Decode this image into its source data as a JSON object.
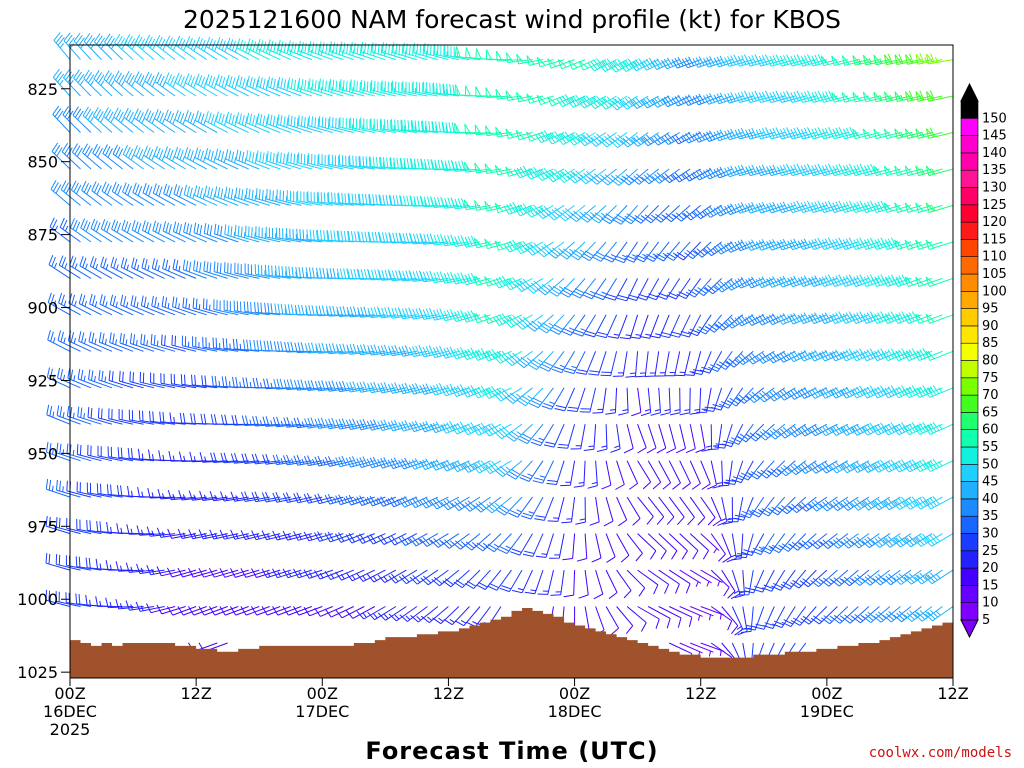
{
  "chart_data": {
    "type": "wind-barb-time-height",
    "title": "2025121600 NAM forecast wind profile (kt) for KBOS",
    "xlabel": "Forecast Time (UTC)",
    "ylabel": "",
    "units": "kt",
    "y_axis": {
      "label_suffix": "",
      "range_hpa": [
        810,
        1027
      ],
      "ticks": [
        "825",
        "850",
        "875",
        "900",
        "925",
        "950",
        "975",
        "1000",
        "1025"
      ],
      "tick_values": [
        825,
        850,
        875,
        900,
        925,
        950,
        975,
        1000,
        1025
      ]
    },
    "x_axis": {
      "range_hours": [
        0,
        84
      ],
      "ticks": [
        {
          "hour": 0,
          "lines": [
            "00Z",
            "16DEC",
            "2025"
          ]
        },
        {
          "hour": 12,
          "lines": [
            "12Z"
          ]
        },
        {
          "hour": 24,
          "lines": [
            "00Z",
            "17DEC"
          ]
        },
        {
          "hour": 36,
          "lines": [
            "12Z"
          ]
        },
        {
          "hour": 48,
          "lines": [
            "00Z",
            "18DEC"
          ]
        },
        {
          "hour": 60,
          "lines": [
            "12Z"
          ]
        },
        {
          "hour": 72,
          "lines": [
            "00Z",
            "19DEC"
          ]
        },
        {
          "hour": 84,
          "lines": [
            "12Z"
          ]
        }
      ]
    },
    "colorbar": {
      "levels": [
        "5",
        "10",
        "15",
        "20",
        "25",
        "30",
        "35",
        "40",
        "45",
        "50",
        "55",
        "60",
        "65",
        "70",
        "75",
        "80",
        "85",
        "90",
        "95",
        "100",
        "105",
        "110",
        "115",
        "120",
        "125",
        "130",
        "135",
        "140",
        "145",
        "150"
      ],
      "colors": [
        "#7f00ff",
        "#6600ff",
        "#4400ff",
        "#2222ff",
        "#1a3cff",
        "#1866ff",
        "#1b8bff",
        "#1fb0ff",
        "#1fd0ff",
        "#12f0e0",
        "#12ffb0",
        "#20ff70",
        "#40ff20",
        "#7aff00",
        "#bfff00",
        "#f5ff00",
        "#ffe600",
        "#ffcc00",
        "#ffaa00",
        "#ff8c00",
        "#ff6a00",
        "#ff4500",
        "#ff1a1a",
        "#ff0033",
        "#ff0066",
        "#ff1493",
        "#ff00aa",
        "#ff00cc",
        "#ff00ff",
        "#000000"
      ]
    },
    "terrain": {
      "color": "#a0522d",
      "pressure_hpa": [
        [
          0,
          1014
        ],
        [
          1,
          1015
        ],
        [
          2,
          1016
        ],
        [
          3,
          1015
        ],
        [
          4,
          1016
        ],
        [
          5,
          1015
        ],
        [
          6,
          1015
        ],
        [
          7,
          1015
        ],
        [
          8,
          1015
        ],
        [
          9,
          1015
        ],
        [
          10,
          1016
        ],
        [
          11,
          1016
        ],
        [
          12,
          1017
        ],
        [
          13,
          1017
        ],
        [
          14,
          1018
        ],
        [
          15,
          1018
        ],
        [
          16,
          1017
        ],
        [
          17,
          1017
        ],
        [
          18,
          1016
        ],
        [
          19,
          1016
        ],
        [
          20,
          1016
        ],
        [
          21,
          1016
        ],
        [
          22,
          1016
        ],
        [
          23,
          1016
        ],
        [
          24,
          1016
        ],
        [
          25,
          1016
        ],
        [
          26,
          1016
        ],
        [
          27,
          1015
        ],
        [
          28,
          1015
        ],
        [
          29,
          1014
        ],
        [
          30,
          1013
        ],
        [
          31,
          1013
        ],
        [
          32,
          1013
        ],
        [
          33,
          1012
        ],
        [
          34,
          1012
        ],
        [
          35,
          1011
        ],
        [
          36,
          1011
        ],
        [
          37,
          1010
        ],
        [
          38,
          1009
        ],
        [
          39,
          1008
        ],
        [
          40,
          1007
        ],
        [
          41,
          1006
        ],
        [
          42,
          1004
        ],
        [
          43,
          1003
        ],
        [
          44,
          1004
        ],
        [
          45,
          1005
        ],
        [
          46,
          1006
        ],
        [
          47,
          1008
        ],
        [
          48,
          1009
        ],
        [
          49,
          1010
        ],
        [
          50,
          1011
        ],
        [
          51,
          1012
        ],
        [
          52,
          1013
        ],
        [
          53,
          1014
        ],
        [
          54,
          1015
        ],
        [
          55,
          1016
        ],
        [
          56,
          1017
        ],
        [
          57,
          1018
        ],
        [
          58,
          1019
        ],
        [
          59,
          1019
        ],
        [
          60,
          1020
        ],
        [
          61,
          1020
        ],
        [
          62,
          1020
        ],
        [
          63,
          1020
        ],
        [
          64,
          1020
        ],
        [
          65,
          1019
        ],
        [
          66,
          1019
        ],
        [
          67,
          1019
        ],
        [
          68,
          1018
        ],
        [
          69,
          1018
        ],
        [
          70,
          1018
        ],
        [
          71,
          1017
        ],
        [
          72,
          1017
        ],
        [
          73,
          1016
        ],
        [
          74,
          1016
        ],
        [
          75,
          1015
        ],
        [
          76,
          1015
        ],
        [
          77,
          1014
        ],
        [
          78,
          1013
        ],
        [
          79,
          1012
        ],
        [
          80,
          1011
        ],
        [
          81,
          1010
        ],
        [
          82,
          1009
        ],
        [
          83,
          1008
        ],
        [
          84,
          1007
        ]
      ]
    },
    "wind_keyframes": [
      {
        "hour": 0,
        "levels": [
          [
            815,
            320,
            35
          ],
          [
            850,
            315,
            30
          ],
          [
            900,
            300,
            25
          ],
          [
            950,
            290,
            25
          ],
          [
            1000,
            285,
            20
          ]
        ]
      },
      {
        "hour": 12,
        "levels": [
          [
            815,
            305,
            40
          ],
          [
            850,
            300,
            35
          ],
          [
            900,
            290,
            25
          ],
          [
            950,
            270,
            15
          ],
          [
            1000,
            250,
            10
          ]
        ]
      },
      {
        "hour": 24,
        "levels": [
          [
            815,
            290,
            45
          ],
          [
            850,
            285,
            40
          ],
          [
            900,
            270,
            35
          ],
          [
            950,
            260,
            25
          ],
          [
            1000,
            250,
            10
          ]
        ]
      },
      {
        "hour": 36,
        "levels": [
          [
            815,
            285,
            45
          ],
          [
            850,
            270,
            45
          ],
          [
            900,
            260,
            40
          ],
          [
            950,
            250,
            35
          ],
          [
            1000,
            230,
            15
          ]
        ]
      },
      {
        "hour": 42,
        "levels": [
          [
            815,
            270,
            50
          ],
          [
            850,
            260,
            50
          ],
          [
            900,
            250,
            50
          ],
          [
            950,
            240,
            40
          ],
          [
            1000,
            210,
            15
          ]
        ]
      },
      {
        "hour": 48,
        "levels": [
          [
            815,
            250,
            50
          ],
          [
            850,
            240,
            45
          ],
          [
            900,
            220,
            30
          ],
          [
            950,
            190,
            15
          ],
          [
            1000,
            180,
            10
          ]
        ]
      },
      {
        "hour": 54,
        "levels": [
          [
            815,
            240,
            45
          ],
          [
            850,
            230,
            35
          ],
          [
            900,
            200,
            15
          ],
          [
            950,
            150,
            10
          ],
          [
            1000,
            120,
            10
          ]
        ]
      },
      {
        "hour": 60,
        "levels": [
          [
            815,
            250,
            30
          ],
          [
            850,
            240,
            25
          ],
          [
            900,
            210,
            20
          ],
          [
            950,
            160,
            10
          ],
          [
            1000,
            110,
            5
          ]
        ]
      },
      {
        "hour": 66,
        "levels": [
          [
            815,
            255,
            40
          ],
          [
            850,
            255,
            35
          ],
          [
            900,
            245,
            30
          ],
          [
            950,
            220,
            25
          ],
          [
            1000,
            200,
            20
          ]
        ]
      },
      {
        "hour": 72,
        "levels": [
          [
            815,
            255,
            45
          ],
          [
            850,
            255,
            40
          ],
          [
            900,
            250,
            35
          ],
          [
            950,
            240,
            30
          ],
          [
            1000,
            225,
            20
          ]
        ]
      },
      {
        "hour": 84,
        "levels": [
          [
            815,
            260,
            65
          ],
          [
            850,
            255,
            55
          ],
          [
            900,
            250,
            50
          ],
          [
            950,
            245,
            45
          ],
          [
            1000,
            235,
            35
          ]
        ]
      }
    ],
    "barb_grid": {
      "time_step_hours": 1,
      "pressure_step_hpa": 12.5,
      "pressure_start_hpa": 815
    }
  },
  "credit": "coolwx.com/models"
}
